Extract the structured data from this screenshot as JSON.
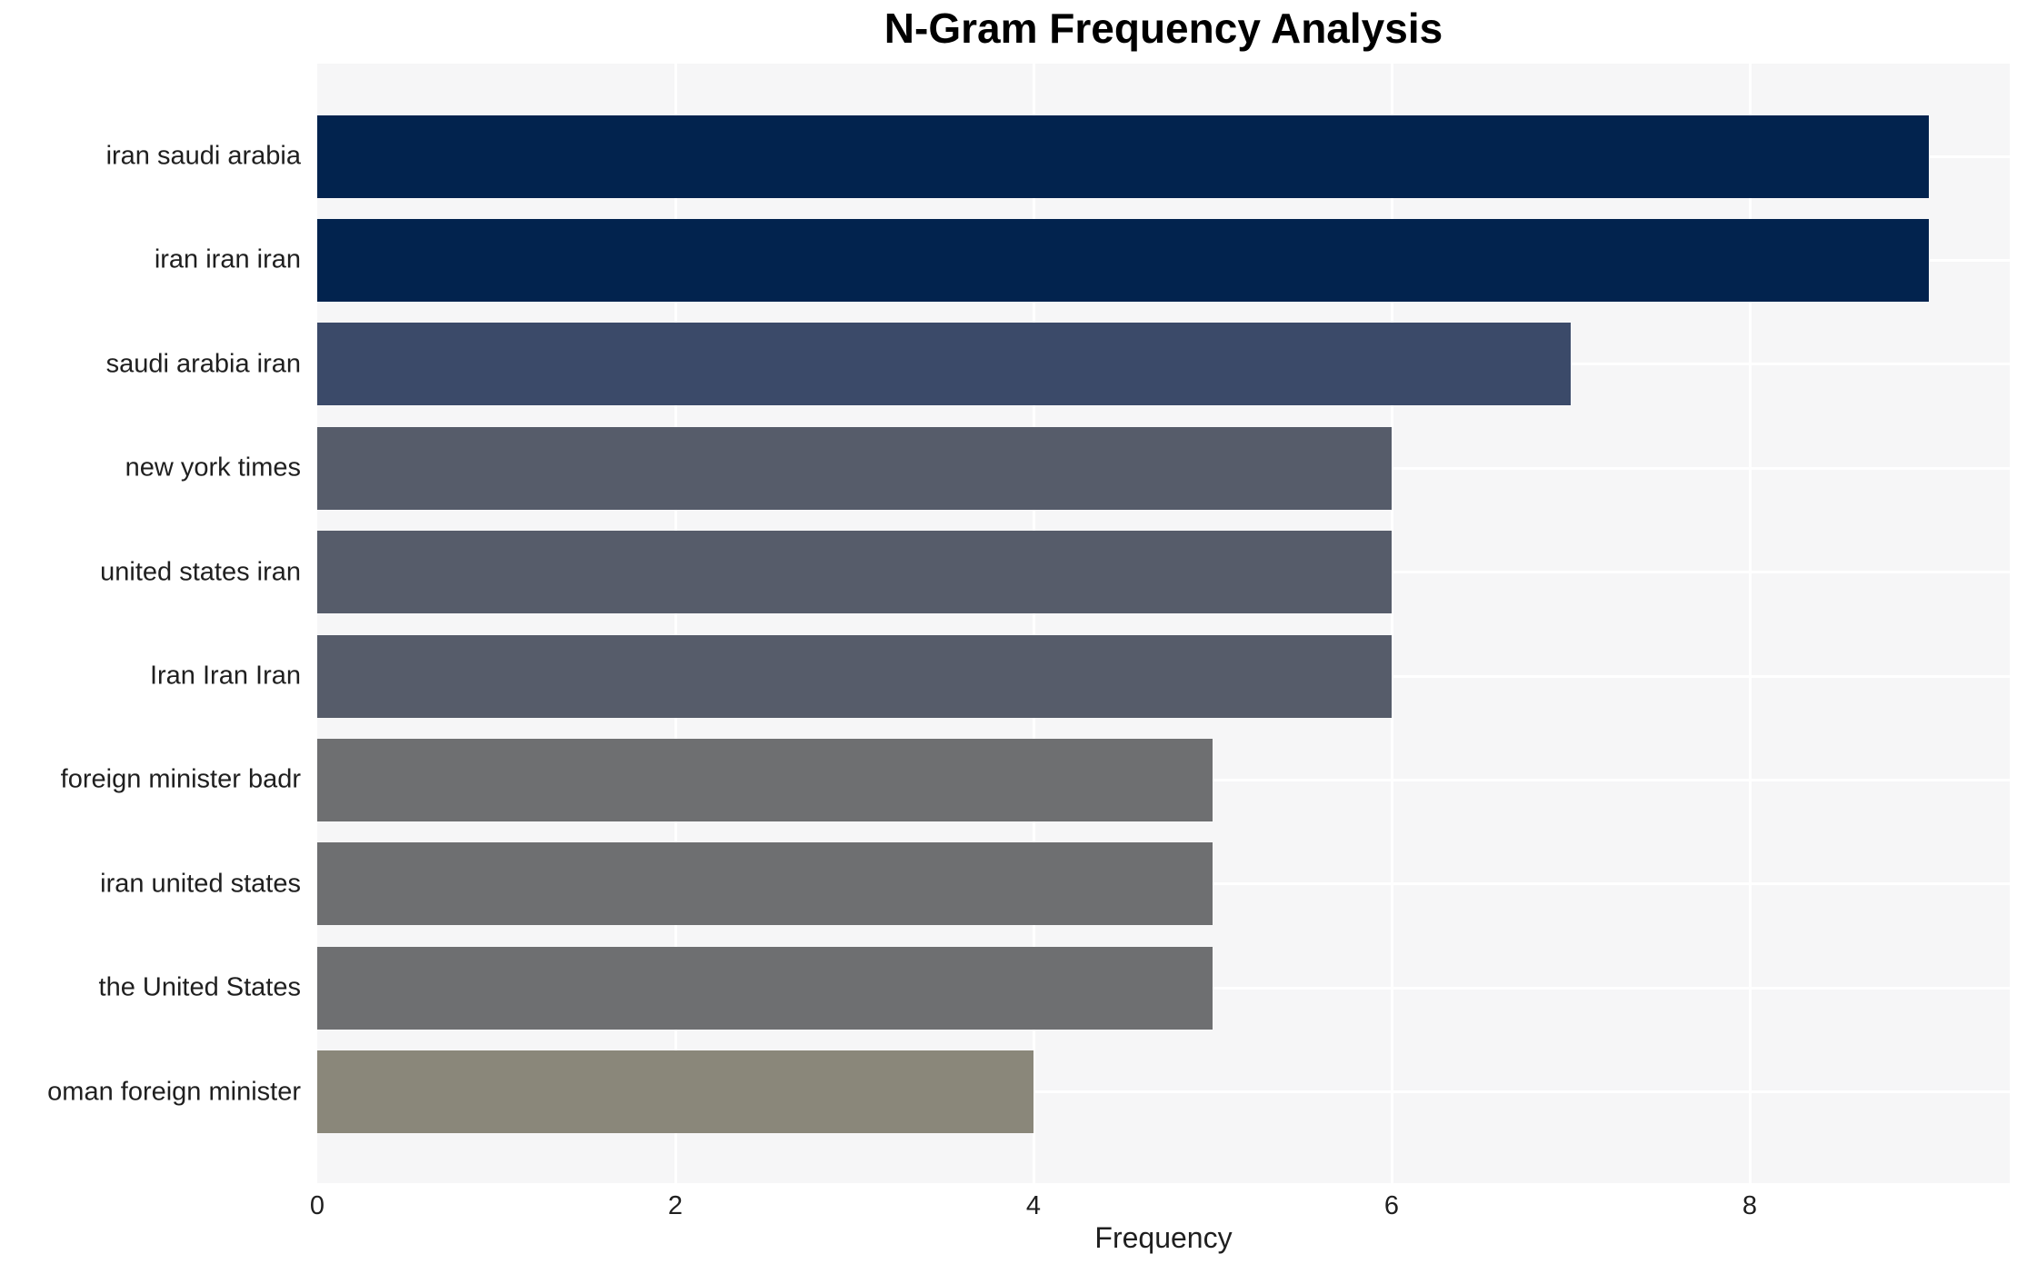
{
  "chart_data": {
    "type": "bar",
    "orientation": "horizontal",
    "title": "N-Gram Frequency Analysis",
    "xlabel": "Frequency",
    "ylabel": "",
    "categories": [
      "iran saudi arabia",
      "iran iran iran",
      "saudi arabia iran",
      "new york times",
      "united states iran",
      "Iran Iran Iran",
      "foreign minister badr",
      "iran united states",
      "the United States",
      "oman foreign minister"
    ],
    "values": [
      9,
      9,
      7,
      6,
      6,
      6,
      5,
      5,
      5,
      4
    ],
    "bar_colors": [
      "#02234e",
      "#02234e",
      "#3b4a69",
      "#565c6a",
      "#565c6a",
      "#565c6a",
      "#6e6f71",
      "#6e6f71",
      "#6e6f71",
      "#8a877a"
    ],
    "xticks": [
      0,
      2,
      4,
      6,
      8
    ],
    "xlim": [
      0,
      9.45
    ],
    "grid": "on",
    "legend": "none",
    "plot_background": "#f6f6f7",
    "grid_color": "#ffffff",
    "figure_background": "#ffffff"
  }
}
